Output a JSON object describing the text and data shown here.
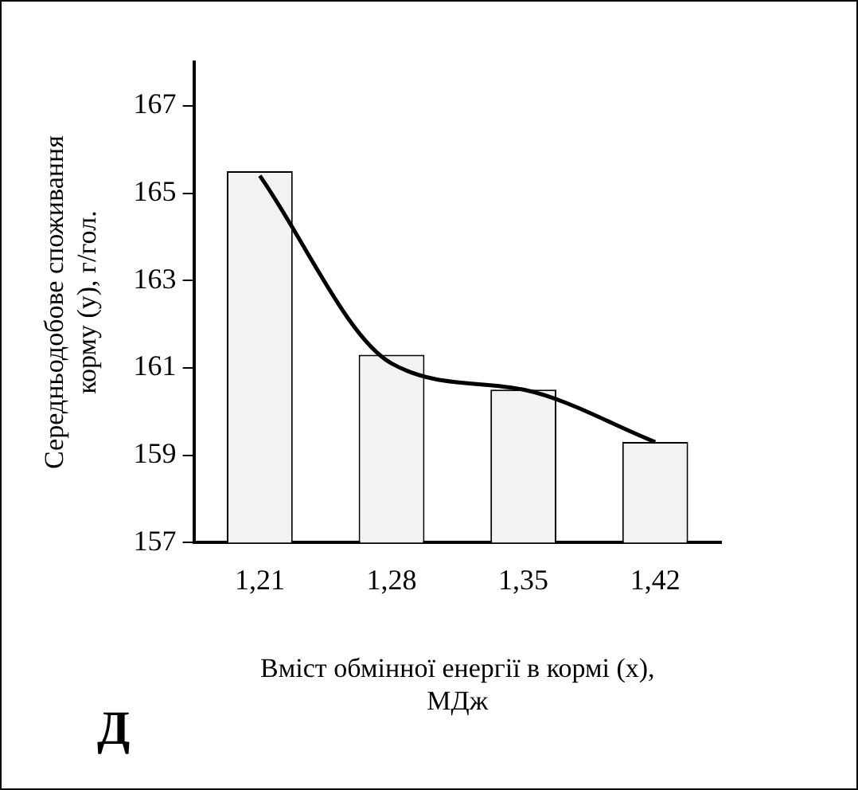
{
  "chart_data": {
    "type": "bar",
    "xlabel": "Вміст обмінної енергії в кормі (х), МДж",
    "ylabel": "Середньодобове споживання корму (у), г/гол.",
    "categories": [
      "1,21",
      "1,28",
      "1,35",
      "1,42"
    ],
    "series": [
      {
        "color": "#f2f2f2",
        "values": [
          165.5,
          161.3,
          160.5,
          159.3
        ]
      },
      {
        "type": "line",
        "color": "#000000",
        "values": [
          165.4,
          161.1,
          160.5,
          159.3
        ]
      }
    ],
    "ylim": [
      157,
      168
    ],
    "yticks": [
      157,
      159,
      161,
      163,
      165,
      167
    ],
    "grid": false,
    "legend": false,
    "marker": "none",
    "line_style": "solid",
    "annotations": [
      "Д"
    ]
  }
}
